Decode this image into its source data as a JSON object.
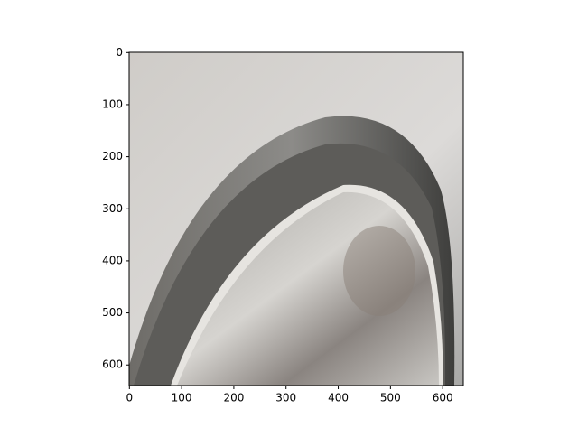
{
  "chart_data": {
    "type": "image",
    "xlim": [
      -0.5,
      639.5
    ],
    "ylim": [
      639.5,
      -0.5
    ],
    "xticks": [
      0,
      100,
      200,
      300,
      400,
      500,
      600
    ],
    "yticks": [
      0,
      100,
      200,
      300,
      400,
      500,
      600
    ]
  }
}
